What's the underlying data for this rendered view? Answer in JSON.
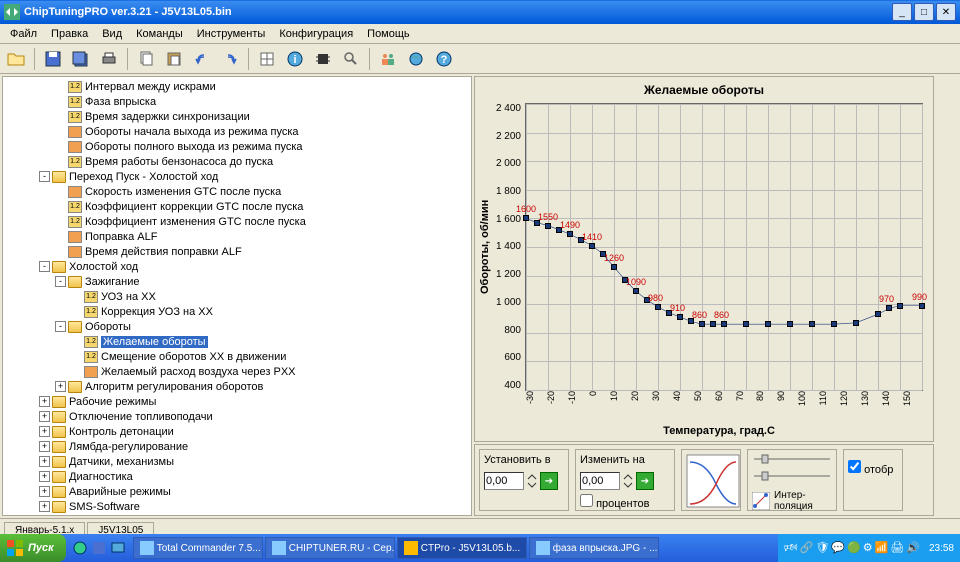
{
  "title": "ChipTuningPRO ver.3.21 - J5V13L05.bin",
  "menu": [
    "Файл",
    "Правка",
    "Вид",
    "Команды",
    "Инструменты",
    "Конфигурация",
    "Помощь"
  ],
  "tree": [
    {
      "d": 3,
      "i": "12",
      "t": "Интервал между искрами"
    },
    {
      "d": 3,
      "i": "12",
      "t": "Фаза впрыска"
    },
    {
      "d": 3,
      "i": "12",
      "t": "Время задержки синхронизации"
    },
    {
      "d": 3,
      "i": "wv",
      "t": "Обороты начала выхода из режима пуска"
    },
    {
      "d": 3,
      "i": "wv",
      "t": "Обороты полного выхода из режима пуска"
    },
    {
      "d": 3,
      "i": "12",
      "t": "Время работы бензонасоса до пуска"
    },
    {
      "d": 2,
      "e": "-",
      "i": "fo",
      "t": "Переход Пуск - Холостой ход"
    },
    {
      "d": 3,
      "i": "wv",
      "t": "Скорость изменения GTC после пуска"
    },
    {
      "d": 3,
      "i": "12",
      "t": "Коэффициент коррекции GTC после пуска"
    },
    {
      "d": 3,
      "i": "12",
      "t": "Коэффициент изменения GTC после пуска"
    },
    {
      "d": 3,
      "i": "wv",
      "t": "Поправка ALF"
    },
    {
      "d": 3,
      "i": "wv",
      "t": "Время действия поправки ALF"
    },
    {
      "d": 2,
      "e": "-",
      "i": "fo",
      "t": "Холостой ход"
    },
    {
      "d": 3,
      "e": "-",
      "i": "fo",
      "t": "Зажигание"
    },
    {
      "d": 4,
      "i": "12",
      "t": "УОЗ на XX"
    },
    {
      "d": 4,
      "i": "12",
      "t": "Коррекция УОЗ на XX"
    },
    {
      "d": 3,
      "e": "-",
      "i": "fo",
      "t": "Обороты"
    },
    {
      "d": 4,
      "i": "12",
      "t": "Желаемые обороты",
      "sel": true
    },
    {
      "d": 4,
      "i": "12",
      "t": "Смещение оборотов XX в движении"
    },
    {
      "d": 4,
      "i": "wv",
      "t": "Желаемый расход воздуха через РXX"
    },
    {
      "d": 3,
      "e": "+",
      "i": "fo",
      "t": "Алгоритм регулирования оборотов"
    },
    {
      "d": 2,
      "e": "+",
      "i": "fo",
      "t": "Рабочие режимы"
    },
    {
      "d": 2,
      "e": "+",
      "i": "fo",
      "t": "Отключение топливоподачи"
    },
    {
      "d": 2,
      "e": "+",
      "i": "fo",
      "t": "Контроль детонации"
    },
    {
      "d": 2,
      "e": "+",
      "i": "fo",
      "t": "Лямбда-регулирование"
    },
    {
      "d": 2,
      "e": "+",
      "i": "fo",
      "t": "Датчики, механизмы"
    },
    {
      "d": 2,
      "e": "+",
      "i": "fo",
      "t": "Диагностика"
    },
    {
      "d": 2,
      "e": "+",
      "i": "fo",
      "t": "Аварийные режимы"
    },
    {
      "d": 2,
      "e": "+",
      "i": "fo",
      "t": "SMS-Software"
    }
  ],
  "tabs": [
    "Январь-5.1.x",
    "J5V13L05"
  ],
  "chart": {
    "title": "Желаемые обороты",
    "y_label": "Обороты, об/мин",
    "x_label": "Температура, град.С",
    "y_ticks": [
      "2 400",
      "2 200",
      "2 000",
      "1 800",
      "1 600",
      "1 400",
      "1 200",
      "1 000",
      "800",
      "600",
      "400"
    ],
    "ymin": 400,
    "ymax": 2400,
    "x_ticks": [
      "-30",
      "-20",
      "-10",
      "0",
      "10",
      "20",
      "30",
      "40",
      "50",
      "60",
      "70",
      "80",
      "90",
      "100",
      "110",
      "120",
      "130",
      "140",
      "150"
    ],
    "series": [
      {
        "x": -30,
        "y": 1600,
        "lbl": "1600"
      },
      {
        "x": -25,
        "y": 1570
      },
      {
        "x": -20,
        "y": 1550,
        "lbl": "1550"
      },
      {
        "x": -15,
        "y": 1520
      },
      {
        "x": -10,
        "y": 1490,
        "lbl": "1490"
      },
      {
        "x": -5,
        "y": 1450
      },
      {
        "x": 0,
        "y": 1410,
        "lbl": "1410"
      },
      {
        "x": 5,
        "y": 1350
      },
      {
        "x": 10,
        "y": 1260,
        "lbl": "1260"
      },
      {
        "x": 15,
        "y": 1170
      },
      {
        "x": 20,
        "y": 1090,
        "lbl": "1090"
      },
      {
        "x": 25,
        "y": 1030
      },
      {
        "x": 30,
        "y": 980,
        "lbl": "980"
      },
      {
        "x": 35,
        "y": 940
      },
      {
        "x": 40,
        "y": 910,
        "lbl": "910"
      },
      {
        "x": 45,
        "y": 880
      },
      {
        "x": 50,
        "y": 860,
        "lbl": "860"
      },
      {
        "x": 55,
        "y": 860
      },
      {
        "x": 60,
        "y": 860,
        "lbl": "860"
      },
      {
        "x": 70,
        "y": 860
      },
      {
        "x": 80,
        "y": 860
      },
      {
        "x": 90,
        "y": 860
      },
      {
        "x": 100,
        "y": 860
      },
      {
        "x": 110,
        "y": 860
      },
      {
        "x": 120,
        "y": 870
      },
      {
        "x": 130,
        "y": 930
      },
      {
        "x": 135,
        "y": 970,
        "lbl": "970"
      },
      {
        "x": 140,
        "y": 990
      },
      {
        "x": 150,
        "y": 990,
        "lbl": "990"
      }
    ],
    "line_color": "#1a3a7a"
  },
  "controls": {
    "set_label": "Установить в",
    "change_label": "Изменить на",
    "set_value": "0,00",
    "change_value": "0,00",
    "percent": "процентов",
    "interp": "Интер-\nполяция",
    "show": "отобр"
  },
  "taskbar": {
    "start": "Пуск",
    "items": [
      {
        "t": "Total Commander 7.5..."
      },
      {
        "t": "CHIPTUNER.RU - Сер..."
      },
      {
        "t": "CTPro - J5V13L05.b...",
        "a": true
      },
      {
        "t": "фаза впрыска.JPG - ..."
      }
    ],
    "clock": "23:58"
  }
}
